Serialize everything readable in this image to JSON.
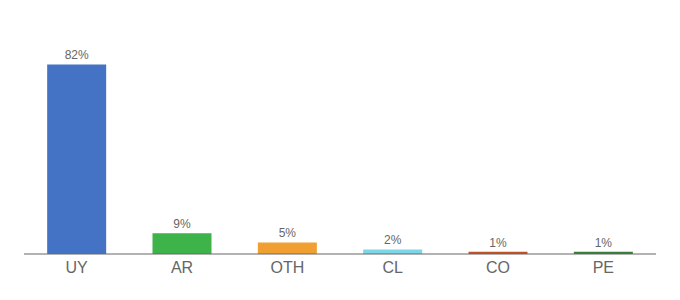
{
  "chart_data": {
    "type": "bar",
    "categories": [
      "UY",
      "AR",
      "OTH",
      "CL",
      "CO",
      "PE"
    ],
    "values": [
      82,
      9,
      5,
      2,
      1,
      1
    ],
    "colors": [
      "#4472c4",
      "#3db34a",
      "#f0a030",
      "#7dd6e8",
      "#c0522a",
      "#3a7d3a"
    ],
    "data_labels": true,
    "value_labels": [
      "82%",
      "9%",
      "5%",
      "2%",
      "1%",
      "1%"
    ],
    "ylim": [
      0,
      96
    ],
    "tick_labels": "x",
    "grid": false
  }
}
